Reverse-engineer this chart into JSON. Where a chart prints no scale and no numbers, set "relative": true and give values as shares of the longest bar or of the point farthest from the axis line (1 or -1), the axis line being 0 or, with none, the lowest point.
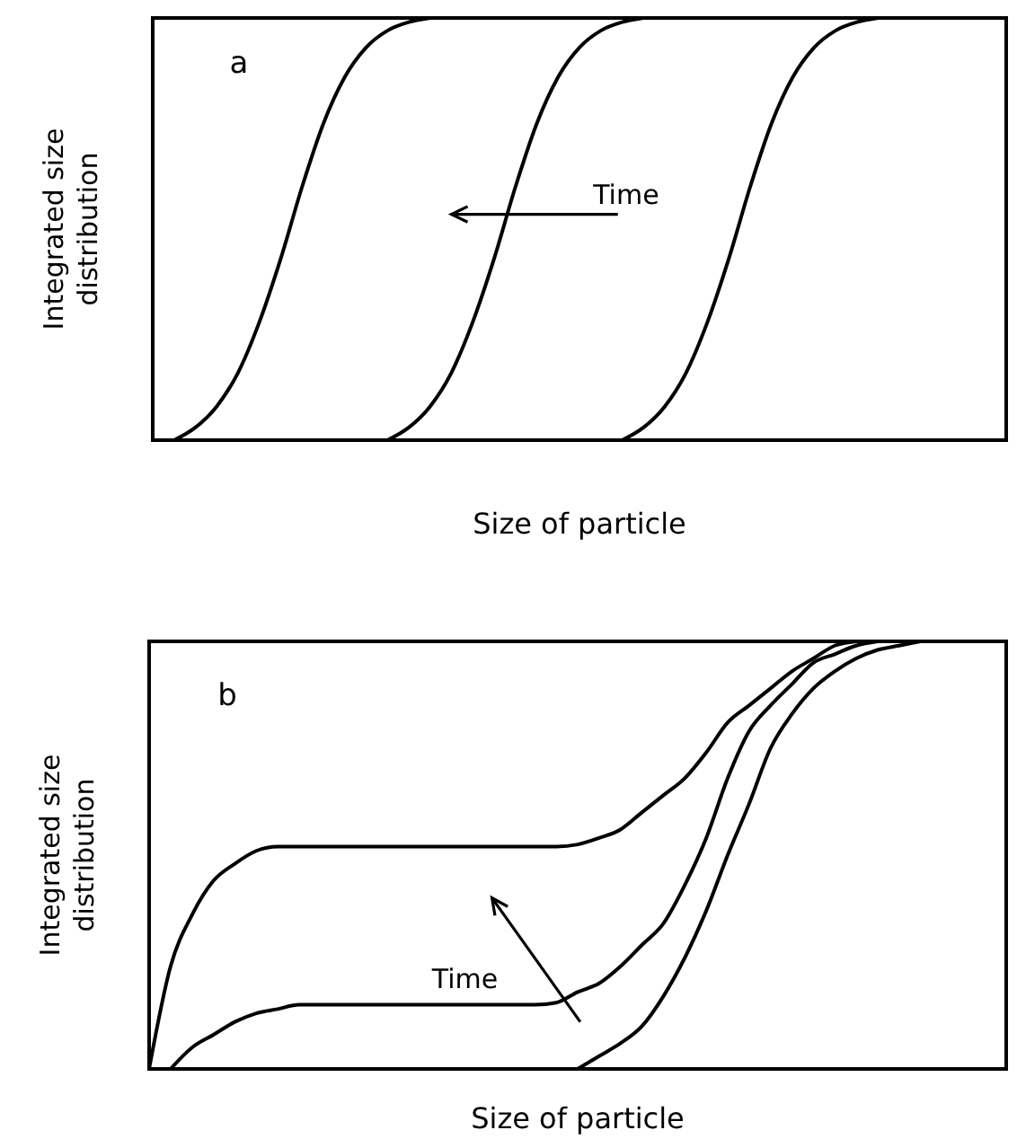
{
  "chart_data": [
    {
      "type": "line",
      "relative": true,
      "xlabel": "Size of particle",
      "ylabel": "Integrated size distribution",
      "annotations": [
        "a",
        "Time"
      ],
      "categories": [
        null,
        null,
        null,
        null,
        null,
        null,
        null,
        null,
        null,
        null,
        null,
        null,
        null,
        null,
        null,
        null,
        null,
        null,
        null,
        null,
        null,
        null,
        null,
        null,
        null,
        null,
        null,
        null,
        null,
        null,
        null,
        null,
        null,
        null,
        null,
        null,
        null,
        null,
        null,
        null,
        null
      ],
      "series": [
        {
          "color": "#000000",
          "values": [
            null,
            0,
            0.03,
            0.08,
            0.16,
            0.28,
            0.43,
            0.6,
            0.75,
            0.86,
            0.93,
            0.97,
            0.99,
            1,
            null,
            null,
            null,
            null,
            null,
            null,
            null,
            null,
            null,
            null,
            null,
            null,
            null,
            null,
            null,
            null,
            null,
            null,
            null,
            null,
            null,
            null,
            null,
            null,
            null,
            null,
            null
          ]
        },
        {
          "color": "#000000",
          "values": [
            null,
            null,
            null,
            null,
            null,
            null,
            null,
            null,
            null,
            null,
            null,
            0,
            0.03,
            0.08,
            0.16,
            0.28,
            0.43,
            0.6,
            0.75,
            0.86,
            0.93,
            0.97,
            0.99,
            1,
            null,
            null,
            null,
            null,
            null,
            null,
            null,
            null,
            null,
            null,
            null,
            null,
            null,
            null,
            null,
            null,
            null
          ]
        },
        {
          "color": "#000000",
          "values": [
            null,
            null,
            null,
            null,
            null,
            null,
            null,
            null,
            null,
            null,
            null,
            null,
            null,
            null,
            null,
            null,
            null,
            null,
            null,
            null,
            null,
            null,
            0,
            0.03,
            0.08,
            0.16,
            0.28,
            0.43,
            0.6,
            0.75,
            0.86,
            0.93,
            0.97,
            0.99,
            1,
            null,
            null,
            null,
            null,
            null,
            null
          ]
        }
      ]
    },
    {
      "type": "line",
      "relative": true,
      "xlabel": "Size of particle",
      "ylabel": "Integrated size distribution",
      "annotations": [
        "b",
        "Time"
      ],
      "categories": [
        null,
        null,
        null,
        null,
        null,
        null,
        null,
        null,
        null,
        null,
        null,
        null,
        null,
        null,
        null,
        null,
        null,
        null,
        null,
        null,
        null,
        null,
        null,
        null,
        null,
        null,
        null,
        null,
        null,
        null,
        null,
        null,
        null,
        null,
        null,
        null,
        null,
        null,
        null,
        null,
        null
      ],
      "series": [
        {
          "color": "#000000",
          "values": [
            0,
            0.24,
            0.36,
            0.44,
            0.48,
            0.51,
            0.52,
            0.52,
            0.52,
            0.52,
            0.52,
            0.52,
            0.52,
            0.52,
            0.52,
            0.52,
            0.52,
            0.52,
            0.52,
            0.52,
            0.525,
            0.54,
            0.56,
            0.6,
            0.64,
            0.68,
            0.74,
            0.81,
            0.85,
            0.89,
            0.93,
            0.96,
            0.99,
            1,
            null,
            null,
            null,
            null,
            null,
            null,
            null
          ]
        },
        {
          "color": "#000000",
          "values": [
            null,
            0,
            0.05,
            0.08,
            0.11,
            0.13,
            0.14,
            0.15,
            0.15,
            0.15,
            0.15,
            0.15,
            0.15,
            0.15,
            0.15,
            0.15,
            0.15,
            0.15,
            0.15,
            0.155,
            0.18,
            0.2,
            0.24,
            0.29,
            0.34,
            0.43,
            0.54,
            0.68,
            0.79,
            0.85,
            0.9,
            0.95,
            0.97,
            0.99,
            1,
            null,
            null,
            null,
            null,
            null,
            null
          ]
        },
        {
          "color": "#000000",
          "values": [
            null,
            null,
            null,
            null,
            null,
            null,
            null,
            null,
            null,
            null,
            null,
            null,
            null,
            null,
            null,
            null,
            null,
            null,
            null,
            null,
            0,
            0.03,
            0.06,
            0.1,
            0.17,
            0.26,
            0.37,
            0.5,
            0.62,
            0.75,
            0.83,
            0.89,
            0.93,
            0.96,
            0.98,
            0.99,
            1,
            null,
            null,
            null,
            null
          ]
        }
      ]
    }
  ]
}
